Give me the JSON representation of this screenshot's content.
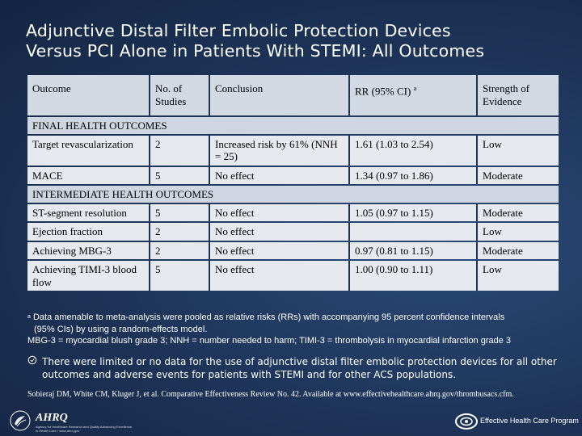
{
  "title": {
    "line1": "Adjunctive Distal Filter Embolic Protection Devices",
    "line2": "Versus PCI Alone in Patients With STEMI: All Outcomes"
  },
  "table": {
    "headers": [
      "Outcome",
      "No. of Studies",
      "Conclusion",
      "RR (95% CI)",
      "Strength of Evidence"
    ],
    "rr_superscript": "a",
    "sections": [
      {
        "label": "FINAL HEALTH OUTCOMES",
        "rows": [
          [
            "Target revascularization",
            "2",
            "Increased risk by 61% (NNH = 25)",
            "1.61 (1.03 to 2.54)",
            "Low"
          ],
          [
            "MACE",
            "5",
            "No effect",
            "1.34 (0.97 to 1.86)",
            "Moderate"
          ]
        ]
      },
      {
        "label": "INTERMEDIATE HEALTH OUTCOMES",
        "rows": [
          [
            "ST-segment resolution",
            "5",
            "No effect",
            "1.05 (0.97 to 1.15)",
            "Moderate"
          ],
          [
            "Ejection fraction",
            "2",
            "No effect",
            "",
            "Low"
          ],
          [
            "Achieving MBG-3",
            "2",
            "No effect",
            "0.97 (0.81 to 1.15)",
            "Moderate"
          ],
          [
            "Achieving TIMI-3 blood flow",
            "5",
            "No effect",
            "1.00 (0.90 to 1.11)",
            "Low"
          ]
        ]
      }
    ]
  },
  "footnote": {
    "marker": "a",
    "line1": "Data amenable to meta-analysis were pooled as relative risks (RRs) with accompanying 95 percent confidence intervals",
    "line2": "(95% CIs) by using a random-effects model.",
    "line3": "MBG-3 = myocardial blush grade 3; NNH = number needed to harm; TIMI-3 = thrombolysis in myocardial infarction grade 3"
  },
  "bullet": {
    "icon": "bullet-icon",
    "text": "There were limited or no data for the use of adjunctive distal filter embolic protection devices for all other outcomes and adverse events for patients with STEMI and for other ACS populations."
  },
  "citation": "Sobieraj DM, White CM, Kluger J, et al. Comparative Effectiveness Review No. 42. Available at www.effectivehealthcare.ahrq.gov/thrombusacs.cfm.",
  "footer": {
    "ahrq_name": "AHRQ",
    "ahrq_sub": "Agency for Healthcare Research and Quality Advancing Excellence in Health Care • www.ahrq.gov",
    "ehc_name": "Effective Health Care Program"
  },
  "colors": {
    "background": "#1d3458",
    "header_fill": "#d2d9e3",
    "row_fill": "#e6e9ee"
  }
}
